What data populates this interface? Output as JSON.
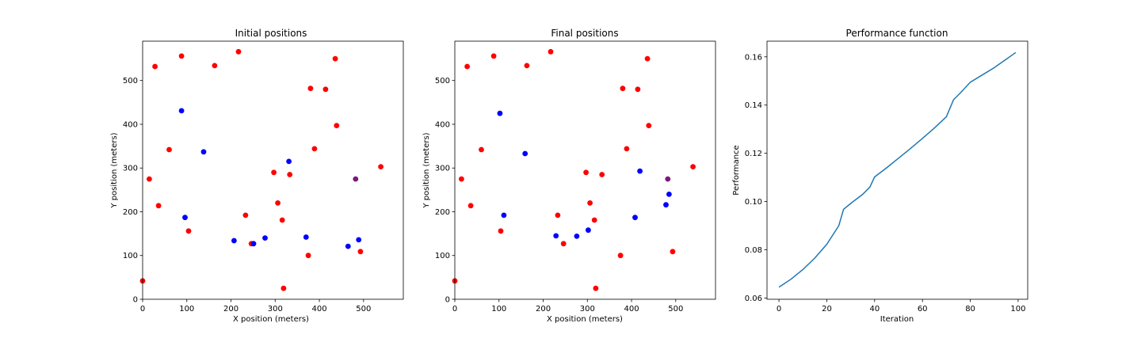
{
  "chart_data": [
    {
      "type": "scatter",
      "title": "Initial positions",
      "xlabel": "X position (meters)",
      "ylabel": "Y position (meters)",
      "xlim": [
        0,
        590
      ],
      "ylim": [
        0,
        590
      ],
      "xticks": [
        0,
        100,
        200,
        300,
        400,
        500
      ],
      "yticks": [
        0,
        100,
        200,
        300,
        400,
        500
      ],
      "grid": false,
      "series": [
        {
          "color": "#ff0000",
          "points": [
            [
              0,
              42
            ],
            [
              15,
              275
            ],
            [
              28,
              532
            ],
            [
              36,
              214
            ],
            [
              60,
              342
            ],
            [
              88,
              556
            ],
            [
              104,
              156
            ],
            [
              163,
              534
            ],
            [
              217,
              566
            ],
            [
              233,
              192
            ],
            [
              246,
              127
            ],
            [
              297,
              290
            ],
            [
              306,
              220
            ],
            [
              316,
              181
            ],
            [
              319,
              25
            ],
            [
              333,
              285
            ],
            [
              375,
              100
            ],
            [
              380,
              482
            ],
            [
              389,
              344
            ],
            [
              414,
              480
            ],
            [
              436,
              550
            ],
            [
              439,
              397
            ],
            [
              493,
              109
            ],
            [
              539,
              303
            ]
          ]
        },
        {
          "color": "#0000ff",
          "points": [
            [
              88,
              431
            ],
            [
              96,
              187
            ],
            [
              138,
              337
            ],
            [
              207,
              134
            ],
            [
              251,
              127
            ],
            [
              277,
              140
            ],
            [
              331,
              315
            ],
            [
              370,
              142
            ],
            [
              465,
              121
            ],
            [
              489,
              136
            ]
          ]
        },
        {
          "color": "#7a1a7a",
          "points": [
            [
              482,
              275
            ]
          ]
        }
      ]
    },
    {
      "type": "scatter",
      "title": "Final positions",
      "xlabel": "X position (meters)",
      "ylabel": "Y position (meters)",
      "xlim": [
        0,
        590
      ],
      "ylim": [
        0,
        590
      ],
      "xticks": [
        0,
        100,
        200,
        300,
        400,
        500
      ],
      "yticks": [
        0,
        100,
        200,
        300,
        400,
        500
      ],
      "grid": false,
      "series": [
        {
          "color": "#ff0000",
          "points": [
            [
              0,
              42
            ],
            [
              15,
              275
            ],
            [
              28,
              532
            ],
            [
              36,
              214
            ],
            [
              60,
              342
            ],
            [
              88,
              556
            ],
            [
              104,
              156
            ],
            [
              163,
              534
            ],
            [
              217,
              566
            ],
            [
              233,
              192
            ],
            [
              246,
              127
            ],
            [
              297,
              290
            ],
            [
              306,
              220
            ],
            [
              316,
              181
            ],
            [
              319,
              25
            ],
            [
              333,
              285
            ],
            [
              375,
              100
            ],
            [
              380,
              482
            ],
            [
              389,
              344
            ],
            [
              414,
              480
            ],
            [
              436,
              550
            ],
            [
              439,
              397
            ],
            [
              493,
              109
            ],
            [
              539,
              303
            ]
          ]
        },
        {
          "color": "#0000ff",
          "points": [
            [
              102,
              425
            ],
            [
              111,
              192
            ],
            [
              159,
              333
            ],
            [
              229,
              145
            ],
            [
              276,
              144
            ],
            [
              302,
              158
            ],
            [
              408,
              187
            ],
            [
              419,
              293
            ],
            [
              478,
              216
            ],
            [
              485,
              240
            ]
          ]
        },
        {
          "color": "#7a1a7a",
          "points": [
            [
              482,
              275
            ]
          ]
        }
      ]
    },
    {
      "type": "line",
      "title": "Performance function",
      "xlabel": "Iteration",
      "ylabel": "Performance",
      "xlim": [
        -5,
        104
      ],
      "ylim": [
        0.0595,
        0.1665
      ],
      "xticks": [
        0,
        20,
        40,
        60,
        80,
        100
      ],
      "yticks": [
        0.06,
        0.08,
        0.1,
        0.12,
        0.14,
        0.16
      ],
      "ytick_labels": [
        "0.06",
        "0.08",
        "0.10",
        "0.12",
        "0.14",
        "0.16"
      ],
      "grid": false,
      "series": [
        {
          "color": "#1f77b4",
          "points": [
            [
              0,
              0.0645
            ],
            [
              5,
              0.0678
            ],
            [
              10,
              0.0718
            ],
            [
              15,
              0.0766
            ],
            [
              20,
              0.0823
            ],
            [
              25,
              0.09
            ],
            [
              27,
              0.0968
            ],
            [
              30,
              0.0992
            ],
            [
              35,
              0.103
            ],
            [
              38,
              0.106
            ],
            [
              40,
              0.1102
            ],
            [
              45,
              0.114
            ],
            [
              50,
              0.118
            ],
            [
              55,
              0.122
            ],
            [
              60,
              0.1262
            ],
            [
              65,
              0.1305
            ],
            [
              70,
              0.1352
            ],
            [
              73,
              0.1422
            ],
            [
              76,
              0.1452
            ],
            [
              80,
              0.1495
            ],
            [
              85,
              0.1525
            ],
            [
              90,
              0.1555
            ],
            [
              95,
              0.159
            ],
            [
              99,
              0.1618
            ]
          ]
        }
      ]
    }
  ]
}
